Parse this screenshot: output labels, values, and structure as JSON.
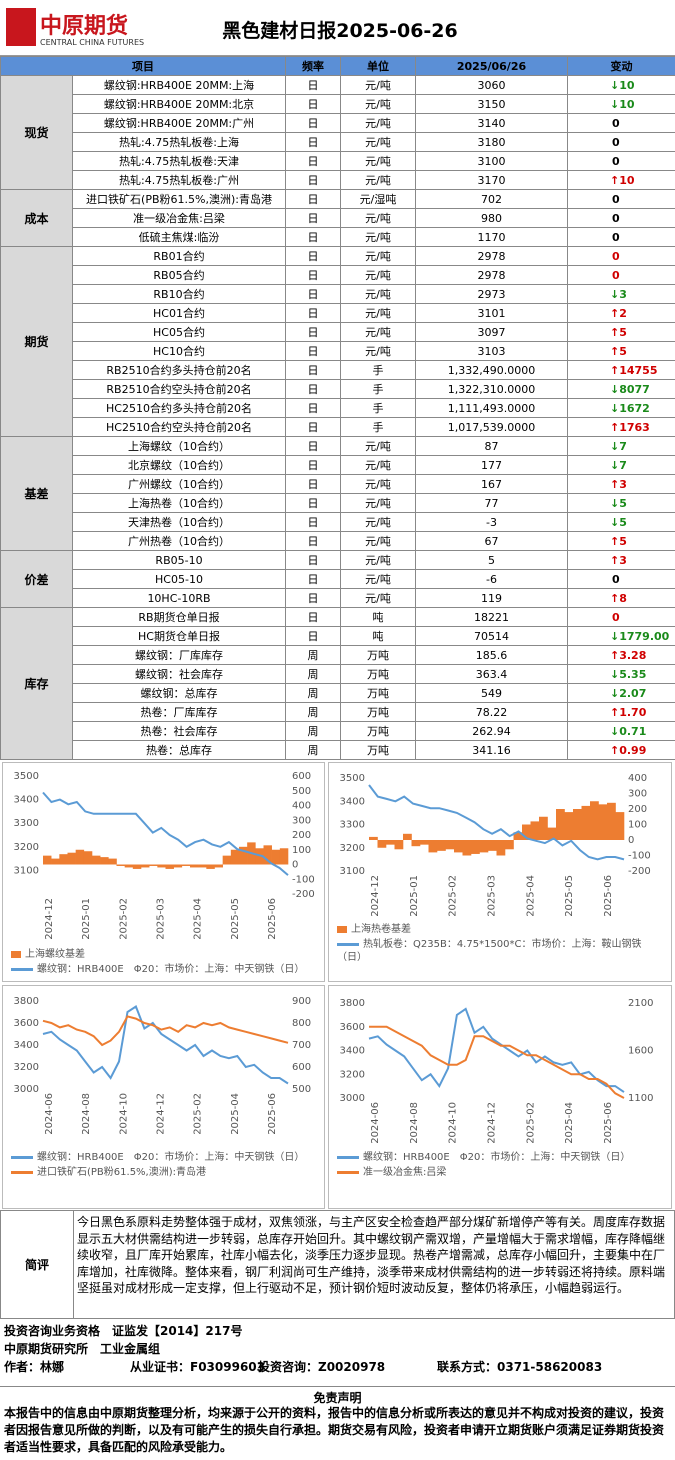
{
  "header": {
    "logo_cn": "中原期货",
    "logo_en": "CENTRAL CHINA FUTURES",
    "title": "黑色建材日报2025-06-26"
  },
  "table": {
    "columns": [
      "项目",
      "频率",
      "单位",
      "2025/06/26",
      "变动"
    ],
    "sections": [
      {
        "name": "现货",
        "rows": [
          {
            "item": "螺纹钢:HRB400E 20MM:上海",
            "freq": "日",
            "unit": "元/吨",
            "value": "3060",
            "change": "10",
            "arrow": "down",
            "change_color": "#1a8a1a"
          },
          {
            "item": "螺纹钢:HRB400E 20MM:北京",
            "freq": "日",
            "unit": "元/吨",
            "value": "3150",
            "change": "10",
            "arrow": "down",
            "change_color": "#1a8a1a"
          },
          {
            "item": "螺纹钢:HRB400E 20MM:广州",
            "freq": "日",
            "unit": "元/吨",
            "value": "3140",
            "change": "0",
            "change_color": "#000000"
          },
          {
            "item": "热轧:4.75热轧板卷:上海",
            "freq": "日",
            "unit": "元/吨",
            "value": "3180",
            "change": "0",
            "change_color": "#000000"
          },
          {
            "item": "热轧:4.75热轧板卷:天津",
            "freq": "日",
            "unit": "元/吨",
            "value": "3100",
            "change": "0",
            "change_color": "#000000"
          },
          {
            "item": "热轧:4.75热轧板卷:广州",
            "freq": "日",
            "unit": "元/吨",
            "value": "3170",
            "change": "10",
            "arrow": "up",
            "change_color": "#d00000"
          }
        ]
      },
      {
        "name": "成本",
        "rows": [
          {
            "item": "进口铁矿石(PB粉61.5%,澳洲):青岛港",
            "freq": "日",
            "unit": "元/湿吨",
            "value": "702",
            "change": "0",
            "change_color": "#000000"
          },
          {
            "item": "准一级冶金焦:吕梁",
            "freq": "日",
            "unit": "元/吨",
            "value": "980",
            "change": "0",
            "change_color": "#000000"
          },
          {
            "item": "低硫主焦煤:临汾",
            "freq": "日",
            "unit": "元/吨",
            "value": "1170",
            "change": "0",
            "change_color": "#000000"
          }
        ]
      },
      {
        "name": "期货",
        "rows": [
          {
            "item": "RB01合约",
            "freq": "日",
            "unit": "元/吨",
            "value": "2978",
            "change": "0",
            "change_color": "#d00000"
          },
          {
            "item": "RB05合约",
            "freq": "日",
            "unit": "元/吨",
            "value": "2978",
            "change": "0",
            "change_color": "#d00000"
          },
          {
            "item": "RB10合约",
            "freq": "日",
            "unit": "元/吨",
            "value": "2973",
            "change": "3",
            "arrow": "down",
            "change_color": "#1a8a1a"
          },
          {
            "item": "HC01合约",
            "freq": "日",
            "unit": "元/吨",
            "value": "3101",
            "change": "2",
            "arrow": "up",
            "change_color": "#d00000"
          },
          {
            "item": "HC05合约",
            "freq": "日",
            "unit": "元/吨",
            "value": "3097",
            "change": "5",
            "arrow": "up",
            "change_color": "#d00000"
          },
          {
            "item": "HC10合约",
            "freq": "日",
            "unit": "元/吨",
            "value": "3103",
            "change": "5",
            "arrow": "up",
            "change_color": "#d00000"
          },
          {
            "item": "RB2510合约多头持仓前20名",
            "freq": "日",
            "unit": "手",
            "value": "1,332,490.0000",
            "change": "14755",
            "arrow": "up",
            "change_color": "#d00000"
          },
          {
            "item": "RB2510合约空头持仓前20名",
            "freq": "日",
            "unit": "手",
            "value": "1,322,310.0000",
            "change": "8077",
            "arrow": "down",
            "change_color": "#1a8a1a"
          },
          {
            "item": "HC2510合约多头持仓前20名",
            "freq": "日",
            "unit": "手",
            "value": "1,111,493.0000",
            "change": "1672",
            "arrow": "down",
            "change_color": "#1a8a1a"
          },
          {
            "item": "HC2510合约空头持仓前20名",
            "freq": "日",
            "unit": "手",
            "value": "1,017,539.0000",
            "change": "1763",
            "arrow": "up",
            "change_color": "#d00000"
          }
        ]
      },
      {
        "name": "基差",
        "rows": [
          {
            "item": "上海螺纹（10合约）",
            "freq": "日",
            "unit": "元/吨",
            "value": "87",
            "change": "7",
            "arrow": "down",
            "change_color": "#1a8a1a"
          },
          {
            "item": "北京螺纹（10合约）",
            "freq": "日",
            "unit": "元/吨",
            "value": "177",
            "change": "7",
            "arrow": "down",
            "change_color": "#1a8a1a"
          },
          {
            "item": "广州螺纹（10合约）",
            "freq": "日",
            "unit": "元/吨",
            "value": "167",
            "change": "3",
            "arrow": "up",
            "change_color": "#d00000"
          },
          {
            "item": "上海热卷（10合约）",
            "freq": "日",
            "unit": "元/吨",
            "value": "77",
            "change": "5",
            "arrow": "down",
            "change_color": "#1a8a1a"
          },
          {
            "item": "天津热卷（10合约）",
            "freq": "日",
            "unit": "元/吨",
            "value": "-3",
            "change": "5",
            "arrow": "down",
            "change_color": "#1a8a1a"
          },
          {
            "item": "广州热卷（10合约）",
            "freq": "日",
            "unit": "元/吨",
            "value": "67",
            "change": "5",
            "arrow": "up",
            "change_color": "#d00000"
          }
        ]
      },
      {
        "name": "价差",
        "rows": [
          {
            "item": "RB05-10",
            "freq": "日",
            "unit": "元/吨",
            "value": "5",
            "change": "3",
            "arrow": "up",
            "change_color": "#d00000"
          },
          {
            "item": "HC05-10",
            "freq": "日",
            "unit": "元/吨",
            "value": "-6",
            "change": "0",
            "change_color": "#000000"
          },
          {
            "item": "10HC-10RB",
            "freq": "日",
            "unit": "元/吨",
            "value": "119",
            "change": "8",
            "arrow": "up",
            "change_color": "#d00000"
          }
        ]
      },
      {
        "name": "库存",
        "rows": [
          {
            "item": "RB期货仓单日报",
            "freq": "日",
            "unit": "吨",
            "value": "18221",
            "change": "0",
            "change_color": "#d00000"
          },
          {
            "item": "HC期货仓单日报",
            "freq": "日",
            "unit": "吨",
            "value": "70514",
            "change": "1779.00",
            "arrow": "down",
            "change_color": "#1a8a1a"
          },
          {
            "item": "螺纹钢：厂库库存",
            "freq": "周",
            "unit": "万吨",
            "value": "185.6",
            "change": "3.28",
            "arrow": "up",
            "change_color": "#d00000"
          },
          {
            "item": "螺纹钢：社会库存",
            "freq": "周",
            "unit": "万吨",
            "value": "363.4",
            "change": "5.35",
            "arrow": "down",
            "change_color": "#1a8a1a"
          },
          {
            "item": "螺纹钢：总库存",
            "freq": "周",
            "unit": "万吨",
            "value": "549",
            "change": "2.07",
            "arrow": "down",
            "change_color": "#1a8a1a"
          },
          {
            "item": "热卷：厂库库存",
            "freq": "周",
            "unit": "万吨",
            "value": "78.22",
            "change": "1.70",
            "arrow": "up",
            "change_color": "#d00000"
          },
          {
            "item": "热卷：社会库存",
            "freq": "周",
            "unit": "万吨",
            "value": "262.94",
            "change": "0.71",
            "arrow": "down",
            "change_color": "#1a8a1a"
          },
          {
            "item": "热卷：总库存",
            "freq": "周",
            "unit": "万吨",
            "value": "341.16",
            "change": "0.99",
            "arrow": "up",
            "change_color": "#d00000"
          }
        ]
      }
    ]
  },
  "chart_data": [
    {
      "type": "line",
      "xticks": [
        "2024-12",
        "2025-01",
        "2025-02",
        "2025-03",
        "2025-04",
        "2025-05",
        "2025-06"
      ],
      "ylim": [
        3000,
        3500
      ],
      "yticks": [
        3100,
        3200,
        3300,
        3400,
        3500
      ],
      "y2lim": [
        -200,
        600
      ],
      "y2ticks": [
        -200,
        -100,
        0,
        100,
        200,
        300,
        400,
        500,
        600
      ],
      "series": [
        {
          "name": "上海螺纹基差",
          "color": "#ed7d31",
          "kind": "bar",
          "axis": "y2",
          "values": [
            60,
            40,
            70,
            80,
            100,
            90,
            60,
            50,
            40,
            -10,
            -20,
            -30,
            -20,
            -10,
            -20,
            -30,
            -20,
            -10,
            -20,
            -20,
            -30,
            -20,
            60,
            100,
            120,
            150,
            110,
            130,
            100,
            110
          ]
        },
        {
          "name": "螺纹钢：HRB400E　Φ20：市场价：上海：中天钢铁（日）",
          "color": "#5b9bd5",
          "kind": "line",
          "values": [
            3430,
            3390,
            3400,
            3380,
            3390,
            3350,
            3340,
            3340,
            3340,
            3340,
            3340,
            3340,
            3300,
            3260,
            3280,
            3250,
            3230,
            3200,
            3220,
            3230,
            3210,
            3200,
            3220,
            3190,
            3180,
            3170,
            3160,
            3130,
            3110,
            3080
          ]
        }
      ]
    },
    {
      "type": "line",
      "xticks": [
        "2024-12",
        "2025-01",
        "2025-02",
        "2025-03",
        "2025-04",
        "2025-05",
        "2025-06"
      ],
      "ylim": [
        3100,
        3500
      ],
      "yticks": [
        3100,
        3200,
        3300,
        3400,
        3500
      ],
      "y2lim": [
        -200,
        400
      ],
      "y2ticks": [
        -200,
        -100,
        0,
        100,
        200,
        300,
        400
      ],
      "series": [
        {
          "name": "上海热卷基差",
          "color": "#ed7d31",
          "kind": "bar",
          "axis": "y2",
          "values": [
            20,
            -50,
            -30,
            -60,
            40,
            -40,
            -30,
            -80,
            -70,
            -60,
            -80,
            -100,
            -90,
            -80,
            -70,
            -100,
            -60,
            50,
            100,
            120,
            150,
            80,
            200,
            180,
            200,
            220,
            250,
            230,
            240,
            180
          ]
        },
        {
          "name": "热轧板卷：Q235B：4.75*1500*C：市场价：上海：鞍山钢铁（日）",
          "color": "#5b9bd5",
          "kind": "line",
          "values": [
            3470,
            3420,
            3410,
            3400,
            3420,
            3390,
            3380,
            3370,
            3370,
            3360,
            3350,
            3330,
            3310,
            3280,
            3260,
            3280,
            3250,
            3270,
            3240,
            3230,
            3220,
            3240,
            3210,
            3230,
            3190,
            3160,
            3150,
            3160,
            3160,
            3150
          ]
        }
      ]
    },
    {
      "type": "line",
      "xticks": [
        "2024-06",
        "2024-08",
        "2024-10",
        "2024-12",
        "2025-02",
        "2025-04",
        "2025-06"
      ],
      "ylim": [
        3000,
        3800
      ],
      "yticks": [
        3000,
        3200,
        3400,
        3600,
        3800
      ],
      "y2lim": [
        500,
        900
      ],
      "y2ticks": [
        500,
        600,
        700,
        800,
        900
      ],
      "series": [
        {
          "name": "螺纹钢：HRB400E　Φ20：市场价：上海：中天钢铁（日）",
          "color": "#5b9bd5",
          "kind": "line",
          "values": [
            3500,
            3520,
            3450,
            3400,
            3350,
            3250,
            3150,
            3200,
            3100,
            3250,
            3700,
            3750,
            3550,
            3600,
            3500,
            3450,
            3400,
            3350,
            3400,
            3300,
            3350,
            3300,
            3280,
            3300,
            3200,
            3220,
            3150,
            3100,
            3100,
            3050
          ]
        },
        {
          "name": "进口铁矿石(PB粉61.5%,澳洲):青岛港",
          "color": "#ed7d31",
          "kind": "line",
          "axis": "y2",
          "values": [
            810,
            800,
            780,
            790,
            770,
            760,
            740,
            700,
            720,
            760,
            830,
            820,
            800,
            790,
            770,
            780,
            760,
            790,
            780,
            800,
            790,
            800,
            780,
            770,
            760,
            750,
            740,
            730,
            720,
            710
          ]
        }
      ]
    },
    {
      "type": "line",
      "xticks": [
        "2024-06",
        "2024-08",
        "2024-10",
        "2024-12",
        "2025-02",
        "2025-04",
        "2025-06"
      ],
      "ylim": [
        3000,
        3800
      ],
      "yticks": [
        3000,
        3200,
        3400,
        3600,
        3800
      ],
      "y2lim": [
        1100,
        2100
      ],
      "y2ticks": [
        1100,
        1600,
        2100
      ],
      "series": [
        {
          "name": "螺纹钢：HRB400E　Φ20：市场价：上海：中天钢铁（日）",
          "color": "#5b9bd5",
          "kind": "line",
          "values": [
            3500,
            3520,
            3450,
            3400,
            3350,
            3250,
            3150,
            3200,
            3100,
            3250,
            3700,
            3750,
            3550,
            3600,
            3500,
            3450,
            3400,
            3350,
            3400,
            3300,
            3350,
            3300,
            3280,
            3300,
            3200,
            3220,
            3150,
            3100,
            3100,
            3050
          ]
        },
        {
          "name": "准一级冶金焦:吕梁",
          "color": "#ed7d31",
          "kind": "line",
          "axis": "y2",
          "values": [
            1850,
            1850,
            1850,
            1800,
            1750,
            1700,
            1650,
            1550,
            1500,
            1450,
            1450,
            1500,
            1750,
            1750,
            1700,
            1650,
            1650,
            1600,
            1550,
            1550,
            1500,
            1450,
            1400,
            1350,
            1350,
            1300,
            1300,
            1250,
            1150,
            1100
          ]
        }
      ]
    }
  ],
  "comment": {
    "label": "简评",
    "text": "今日黑色系原料走势整体强于成材，双焦领涨，与主产区安全检查趋严部分煤矿新增停产等有关。周度库存数据显示五大材供需结构进一步转弱，总库存开始回升。其中螺纹钢产需双增，产量增幅大于需求增幅，库存降幅继续收窄，且厂库开始累库，社库小幅去化，淡季压力逐步显现。热卷产增需减，总库存小幅回升，主要集中在厂库增加，社库微降。整体来看，钢厂利润尚可生产维持，淡季带来成材供需结构的进一步转弱还将持续。原料端坚挺虽对成材形成一定支撑，但上行驱动不足，预计钢价短时波动反复，整体仍将承压，小幅趋弱运行。"
  },
  "footer": {
    "qualification": "投资咨询业务资格　证监发【2014】217号",
    "institute": "中原期货研究所　工业金属组",
    "author": "作者：林娜",
    "certificate": "从业证书：F03099603",
    "consulting": "投资咨询：Z0020978",
    "contact": "联系方式：0371-58620083"
  },
  "disclaimer": {
    "title": "免责声明",
    "text": "本报告中的信息由中原期货整理分析，均来源于公开的资料，报告中的信息分析或所表达的意见并不构成对投资的建议，投资者因报告意见所做的判断，以及有可能产生的损失自行承担。期货交易有风险，投资者申请开立期货账户须满足证券期货投资者适当性要求，具备匹配的风险承受能力。"
  }
}
